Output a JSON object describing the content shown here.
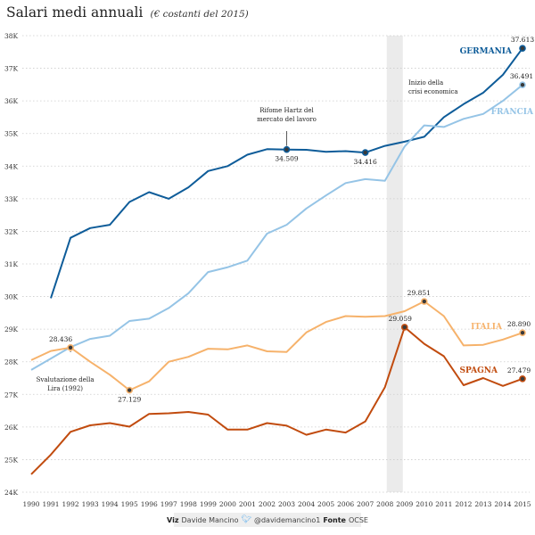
{
  "chart_data": {
    "type": "line",
    "title": "Salari medi annuali",
    "subtitle": "(€ costanti del 2015)",
    "x": [
      1990,
      1991,
      1992,
      1993,
      1994,
      1995,
      1996,
      1997,
      1998,
      1999,
      2000,
      2001,
      2002,
      2003,
      2004,
      2005,
      2006,
      2007,
      2008,
      2009,
      2010,
      2011,
      2012,
      2013,
      2014,
      2015
    ],
    "y_ticks": [
      "24K",
      "25K",
      "26K",
      "27K",
      "28K",
      "29K",
      "30K",
      "31K",
      "32K",
      "33K",
      "34K",
      "35K",
      "36K",
      "37K",
      "38K"
    ],
    "ylim": [
      24000,
      38000
    ],
    "grid": true,
    "highlight_band": [
      2008,
      2009
    ],
    "series": [
      {
        "name": "GERMANIA",
        "color": "#0e5c99",
        "values": [
          null,
          29950,
          31800,
          32100,
          32200,
          32900,
          33200,
          33000,
          33350,
          33850,
          34000,
          34350,
          34520,
          34509,
          34500,
          34440,
          34460,
          34416,
          34620,
          34750,
          34900,
          35500,
          35900,
          36250,
          36800,
          37613
        ]
      },
      {
        "name": "FRANCIA",
        "color": "#95c4e6",
        "values": [
          27750,
          28100,
          28450,
          28700,
          28800,
          29250,
          29320,
          29650,
          30100,
          30750,
          30900,
          31100,
          31930,
          32200,
          32700,
          33100,
          33480,
          33600,
          33550,
          34600,
          35250,
          35200,
          35450,
          35600,
          36000,
          36491
        ]
      },
      {
        "name": "ITALIA",
        "color": "#f6b26b",
        "values": [
          28050,
          28330,
          28436,
          28000,
          27600,
          27129,
          27400,
          28000,
          28150,
          28400,
          28380,
          28500,
          28320,
          28300,
          28900,
          29220,
          29400,
          29380,
          29400,
          29550,
          29851,
          29400,
          28500,
          28520,
          28680,
          28890
        ]
      },
      {
        "name": "SPAGNA",
        "color": "#c14b0e",
        "values": [
          24550,
          25150,
          25850,
          26050,
          26120,
          26010,
          26400,
          26420,
          26460,
          26380,
          25920,
          25920,
          26120,
          26040,
          25760,
          25920,
          25830,
          26170,
          27220,
          29059,
          28550,
          28170,
          27280,
          27500,
          27260,
          27479
        ]
      }
    ],
    "point_labels": [
      {
        "series": "GERMANIA",
        "x": 2003,
        "label": "34.509"
      },
      {
        "series": "GERMANIA",
        "x": 2007,
        "label": "34.416"
      },
      {
        "series": "GERMANIA",
        "x": 2015,
        "label": "37.613"
      },
      {
        "series": "FRANCIA",
        "x": 2015,
        "label": "36.491"
      },
      {
        "series": "ITALIA",
        "x": 1992,
        "label": "28.436"
      },
      {
        "series": "ITALIA",
        "x": 1995,
        "label": "27.129"
      },
      {
        "series": "ITALIA",
        "x": 2010,
        "label": "29.851"
      },
      {
        "series": "ITALIA",
        "x": 2015,
        "label": "28.890"
      },
      {
        "series": "SPAGNA",
        "x": 2009,
        "label": "29.059"
      },
      {
        "series": "SPAGNA",
        "x": 2015,
        "label": "27.479"
      }
    ],
    "annotations": [
      {
        "lines": [
          "Rifome Hartz del",
          "mercato del lavoro"
        ]
      },
      {
        "lines": [
          "Inizio della",
          "crisi economica"
        ]
      },
      {
        "lines": [
          "Svalutazione della",
          "Lira (1992)"
        ]
      }
    ]
  },
  "footer": {
    "viz_label": "Viz",
    "viz_name": "Davide Mancino",
    "twitter": "@davidemancino1",
    "source_label": "Fonte",
    "source_name": "OCSE"
  }
}
